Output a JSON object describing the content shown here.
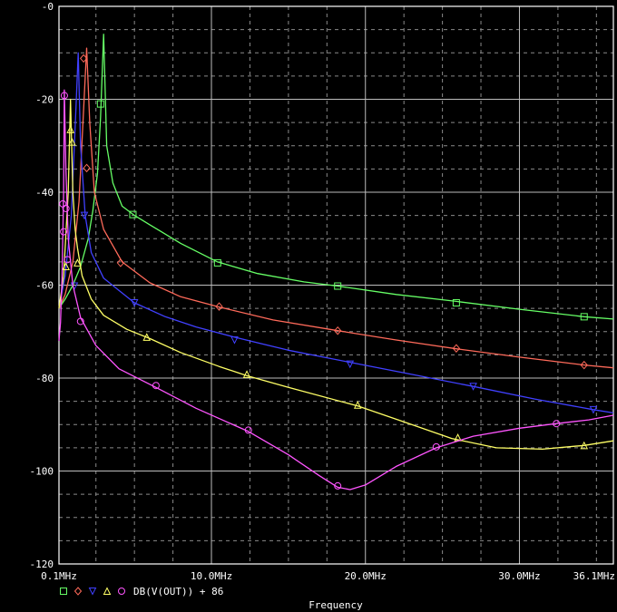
{
  "chart_data": {
    "type": "line",
    "title": "",
    "xlabel": "Frequency",
    "ylabel": "",
    "xlim": [
      0.1,
      36.1
    ],
    "ylim": [
      -120,
      0
    ],
    "grid": true,
    "x_ticks": [
      {
        "value": 0.1,
        "label": "0.1MHz"
      },
      {
        "value": 10,
        "label": "10.0MHz"
      },
      {
        "value": 20,
        "label": "20.0MHz"
      },
      {
        "value": 30,
        "label": "30.0MHz"
      },
      {
        "value": 36.1,
        "label": "36.1MHz"
      }
    ],
    "y_ticks": [
      {
        "value": 0,
        "label": "-0"
      },
      {
        "value": -20,
        "label": "-20"
      },
      {
        "value": -40,
        "label": "-40"
      },
      {
        "value": -60,
        "label": "-60"
      },
      {
        "value": -80,
        "label": "-80"
      },
      {
        "value": -100,
        "label": "-100"
      },
      {
        "value": -120,
        "label": "-120"
      }
    ],
    "legend_text": "DB(V(OUT)) + 86",
    "legend_placement": "bottom-left",
    "series": [
      {
        "color": "#66ff66",
        "marker": "square",
        "x": [
          0.1,
          0.5,
          1.0,
          1.5,
          2.0,
          2.3,
          2.6,
          2.8,
          3.0,
          3.2,
          3.6,
          4.2,
          5.0,
          6.0,
          8.0,
          10.4,
          13.0,
          16.0,
          18.2,
          22.0,
          25.9,
          30.0,
          34.2,
          36.1
        ],
        "y": [
          -65,
          -63,
          -60,
          -56,
          -50,
          -44,
          -36,
          -24,
          -6,
          -30,
          -38,
          -43,
          -45,
          -47,
          -51,
          -55,
          -57.5,
          -59.3,
          -60.2,
          -62,
          -63.5,
          -65.2,
          -66.8,
          -67.3
        ],
        "markers": [
          [
            2.8,
            -21
          ],
          [
            4.9,
            -44.8
          ],
          [
            10.4,
            -55.2
          ],
          [
            18.2,
            -60.2
          ],
          [
            25.9,
            -63.8
          ],
          [
            34.2,
            -66.8
          ]
        ]
      },
      {
        "color": "#ff6a5a",
        "marker": "diamond",
        "x": [
          0.1,
          0.5,
          1.0,
          1.4,
          1.7,
          1.9,
          2.1,
          2.4,
          3.0,
          4.2,
          6.0,
          8.0,
          10.5,
          14.0,
          18.2,
          22.0,
          25.9,
          30.0,
          34.2,
          36.1
        ],
        "y": [
          -65,
          -62,
          -55,
          -42,
          -22,
          -9,
          -25,
          -40,
          -48,
          -55,
          -59.5,
          -62.5,
          -64.7,
          -67.5,
          -69.8,
          -71.8,
          -73.7,
          -75.5,
          -77.2,
          -77.8
        ],
        "markers": [
          [
            1.7,
            -11.2
          ],
          [
            1.9,
            -34.8
          ],
          [
            4.1,
            -55.2
          ],
          [
            10.5,
            -64.6
          ],
          [
            18.2,
            -69.8
          ],
          [
            25.9,
            -73.6
          ],
          [
            34.2,
            -77.2
          ]
        ]
      },
      {
        "color": "#4040ff",
        "marker": "triangle-down",
        "x": [
          0.1,
          0.5,
          0.9,
          1.2,
          1.35,
          1.5,
          1.8,
          2.2,
          3.0,
          5.0,
          7.0,
          9.0,
          11.5,
          15.0,
          19.0,
          23.0,
          27.0,
          31.0,
          34.8,
          36.1
        ],
        "y": [
          -65,
          -58,
          -45,
          -22,
          -10,
          -30,
          -45,
          -53,
          -58.5,
          -63.8,
          -66.8,
          -69,
          -71.2,
          -74,
          -76.6,
          -79.2,
          -81.8,
          -84.5,
          -86.8,
          -87.5
        ],
        "markers": [
          [
            1.1,
            -60.2
          ],
          [
            1.75,
            -45
          ],
          [
            5.0,
            -63.8
          ],
          [
            11.5,
            -71.8
          ],
          [
            19.0,
            -77
          ],
          [
            27.0,
            -81.8
          ],
          [
            34.8,
            -86.8
          ]
        ]
      },
      {
        "color": "#ffff66",
        "marker": "triangle",
        "x": [
          0.1,
          0.4,
          0.7,
          0.85,
          1.0,
          1.15,
          1.3,
          1.6,
          2.2,
          3.0,
          4.5,
          6.0,
          8.0,
          10.5,
          12.3,
          15.0,
          19.5,
          23.0,
          25.6,
          28.5,
          31.5,
          33.5,
          34.2,
          36.1
        ],
        "y": [
          -65,
          -58,
          -40,
          -20,
          -40,
          -48,
          -52,
          -58,
          -63,
          -66.5,
          -69.5,
          -71.5,
          -74.5,
          -77.5,
          -79.5,
          -82,
          -86,
          -90,
          -93,
          -95,
          -95.3,
          -94.7,
          -94.5,
          -93.5
        ],
        "markers": [
          [
            0.55,
            -56
          ],
          [
            0.85,
            -26.5
          ],
          [
            0.95,
            -29.2
          ],
          [
            1.3,
            -55.2
          ],
          [
            5.8,
            -71.2
          ],
          [
            12.3,
            -79.2
          ],
          [
            19.5,
            -85.8
          ],
          [
            26.0,
            -92.8
          ],
          [
            34.2,
            -94.5
          ]
        ]
      },
      {
        "color": "#ff55ff",
        "marker": "circle",
        "x": [
          0.1,
          0.2,
          0.3,
          0.4,
          0.45,
          0.55,
          0.7,
          1.0,
          1.5,
          2.5,
          4.0,
          6.4,
          9.0,
          12.4,
          15.0,
          17.0,
          18.2,
          19.0,
          20.0,
          22.0,
          24.6,
          27.0,
          30.0,
          32.4,
          34.5,
          36.1
        ],
        "y": [
          -72,
          -68,
          -58,
          -40,
          -18,
          -35,
          -50,
          -60,
          -67,
          -73,
          -78,
          -82,
          -86.5,
          -91.5,
          -96.5,
          -101,
          -103.5,
          -104,
          -103,
          -99,
          -95,
          -92.5,
          -90.8,
          -89.8,
          -89,
          -88
        ],
        "markers": [
          [
            0.35,
            -42.5
          ],
          [
            0.4,
            -48.5
          ],
          [
            0.45,
            -19.2
          ],
          [
            0.55,
            -43.5
          ],
          [
            0.65,
            -54.5
          ],
          [
            1.5,
            -67.8
          ],
          [
            6.4,
            -81.6
          ],
          [
            12.4,
            -91.2
          ],
          [
            18.2,
            -103.2
          ],
          [
            24.6,
            -94.8
          ],
          [
            32.4,
            -89.8
          ]
        ]
      }
    ]
  }
}
